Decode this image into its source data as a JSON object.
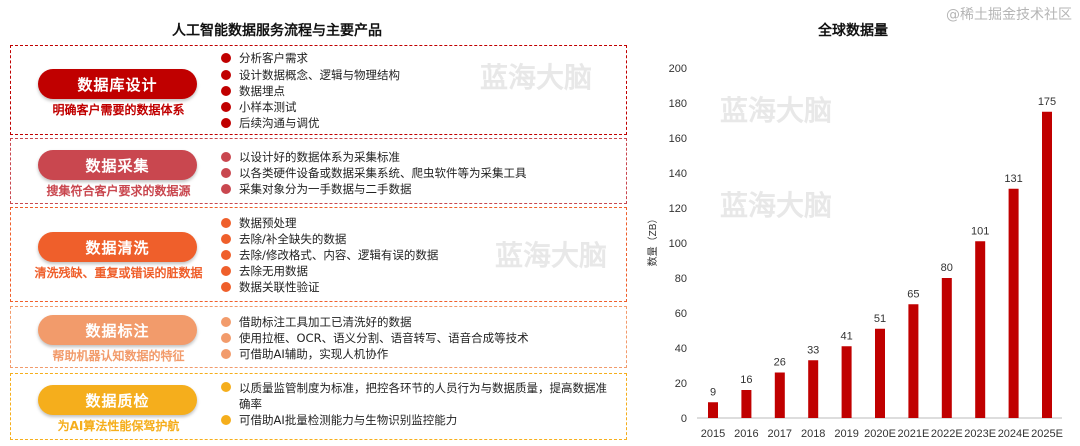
{
  "left_title": "人工智能数据服务流程与主要产品",
  "sections": [
    {
      "name": "数据库设计",
      "subtitle": "明确客户需要的数据体系",
      "color": "#c00000",
      "items": [
        "分析客户需求",
        "设计数据概念、逻辑与物理结构",
        "数据埋点",
        "小样本测试",
        "后续沟通与调优"
      ]
    },
    {
      "name": "数据采集",
      "subtitle": "搜集符合客户要求的数据源",
      "color": "#c9474f",
      "items": [
        "以设计好的数据体系为采集标准",
        "以各类硬件设备或数据采集系统、爬虫软件等为采集工具",
        "采集对象分为一手数据与二手数据"
      ]
    },
    {
      "name": "数据清洗",
      "subtitle": "清洗残缺、重复或错误的脏数据",
      "color": "#ef5f2b",
      "items": [
        "数据预处理",
        "去除/补全缺失的数据",
        "去除/修改格式、内容、逻辑有误的数据",
        "去除无用数据",
        "数据关联性验证"
      ]
    },
    {
      "name": "数据标注",
      "subtitle": "帮助机器认知数据的特征",
      "color": "#f29b6b",
      "items": [
        "借助标注工具加工已清洗好的数据",
        "使用拉框、OCR、语义分割、语音转写、语音合成等技术",
        "可借助AI辅助，实现人机协作"
      ]
    },
    {
      "name": "数据质检",
      "subtitle": "为AI算法性能保驾护航",
      "color": "#f5ae1c",
      "items": [
        "以质量监管制度为标准，把控各环节的人员行为与数据质量，提高数据准确率",
        "可借助AI批量检测能力与生物识别监控能力"
      ]
    }
  ],
  "watermark": "蓝海大脑",
  "source_watermark": "@稀土掘金技术社区",
  "chart_data": {
    "type": "bar",
    "title": "全球数据量",
    "ylabel": "数量（ZB）",
    "xlabel": "",
    "categories": [
      "2015",
      "2016",
      "2017",
      "2018",
      "2019",
      "2020E",
      "2021E",
      "2022E",
      "2023E",
      "2024E",
      "2025E"
    ],
    "values": [
      9,
      16,
      26,
      33,
      41,
      51,
      65,
      80,
      101,
      131,
      175
    ],
    "ylim": [
      0,
      200
    ],
    "yticks": [
      0,
      20,
      40,
      60,
      80,
      100,
      120,
      140,
      160,
      180,
      200
    ],
    "grid": false,
    "bar_color": "#c00000",
    "data_labels": true
  }
}
